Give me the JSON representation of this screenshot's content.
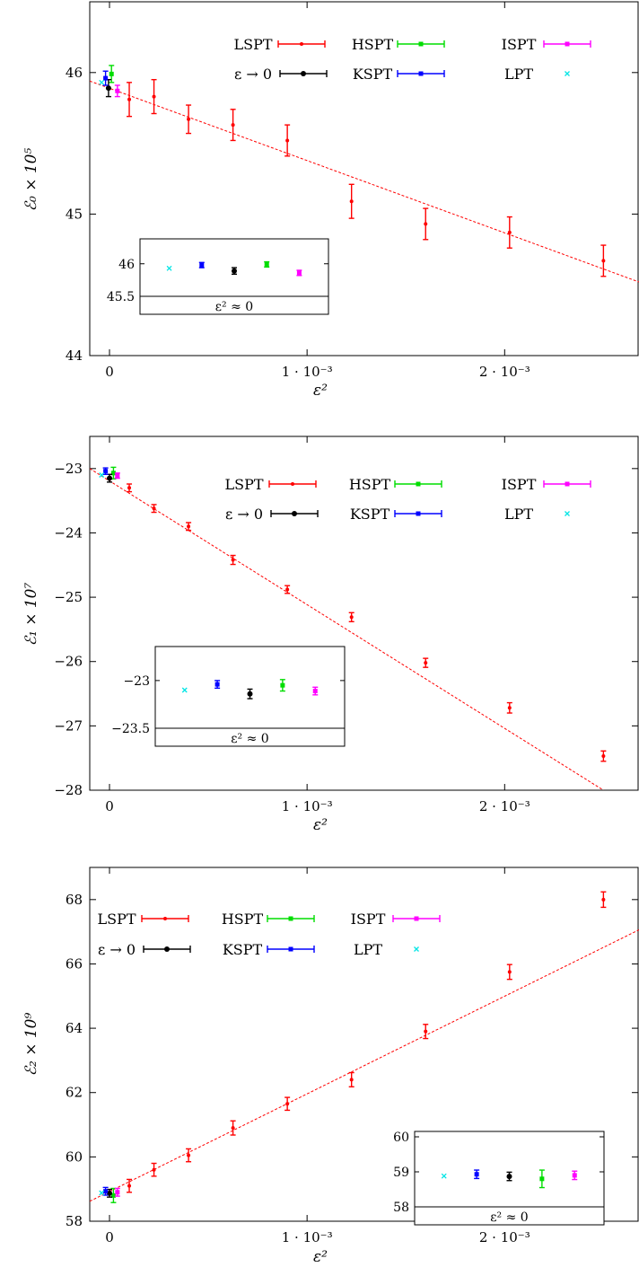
{
  "chart_data": [
    {
      "type": "scatter",
      "ylabel": "ℰ₀ × 10⁵",
      "xlabel": "ε²",
      "xlim": [
        -0.0001,
        0.00268
      ],
      "ylim": [
        44,
        46.5
      ],
      "xticks": [
        {
          "v": 0,
          "label": "0"
        },
        {
          "v": 0.001,
          "label": "1 · 10⁻³"
        },
        {
          "v": 0.002,
          "label": "2 · 10⁻³"
        }
      ],
      "yticks": [
        {
          "v": 44,
          "label": "44"
        },
        {
          "v": 45,
          "label": "45"
        },
        {
          "v": 46,
          "label": "46"
        }
      ],
      "legend": [
        "LSPT",
        "HSPT",
        "ISPT",
        "ε → 0",
        "KSPT",
        "LPT"
      ],
      "legend_position": "top-right",
      "series": [
        {
          "name": "LSPT",
          "color": "#ff0000",
          "x": [
            0.0001,
            0.000225,
            0.0004,
            0.000625,
            0.0009,
            0.001225,
            0.0016,
            0.002025,
            0.0025
          ],
          "y": [
            45.81,
            45.83,
            45.67,
            45.63,
            45.52,
            45.09,
            44.93,
            44.87,
            44.67
          ],
          "err": [
            0.12,
            0.12,
            0.1,
            0.11,
            0.11,
            0.12,
            0.11,
            0.11,
            0.11
          ]
        },
        {
          "name": "HSPT",
          "color": "#00dd00",
          "x": [
            1e-05
          ],
          "y": [
            45.99
          ],
          "err": [
            0.06
          ]
        },
        {
          "name": "ISPT",
          "color": "#ff00ff",
          "x": [
            4e-05
          ],
          "y": [
            45.87
          ],
          "err": [
            0.04
          ]
        },
        {
          "name": "ε → 0",
          "color": "#000000",
          "x": [
            -5e-06
          ],
          "y": [
            45.89
          ],
          "err": [
            0.06
          ]
        },
        {
          "name": "KSPT",
          "color": "#0000ff",
          "x": [
            -2e-05
          ],
          "y": [
            45.96
          ],
          "err": [
            0.05
          ]
        },
        {
          "name": "LPT",
          "color": "#00e5e5",
          "x": [
            -4e-05
          ],
          "y": [
            45.93
          ],
          "err": [
            0
          ]
        }
      ],
      "fit": {
        "color": "#ff0000",
        "x": [
          -0.0001,
          0.00268
        ],
        "y": [
          45.94,
          44.52
        ]
      },
      "inset": {
        "xlabel": "ε² ≈ 0",
        "ylim": [
          45.5,
          46.3
        ],
        "yticks": [
          {
            "v": 46,
            "label": "46"
          },
          {
            "v": 45.5,
            "label": "45.5"
          }
        ],
        "points": [
          {
            "name": "LPT",
            "color": "#00e5e5",
            "y": 45.93,
            "err": 0
          },
          {
            "name": "KSPT",
            "color": "#0000ff",
            "y": 45.98,
            "err": 0.04
          },
          {
            "name": "ε → 0",
            "color": "#000000",
            "y": 45.89,
            "err": 0.05
          },
          {
            "name": "HSPT",
            "color": "#00dd00",
            "y": 45.99,
            "err": 0.04
          },
          {
            "name": "ISPT",
            "color": "#ff00ff",
            "y": 45.86,
            "err": 0.04
          }
        ]
      }
    },
    {
      "type": "scatter",
      "ylabel": "ℰ₁ × 10⁷",
      "xlabel": "ε²",
      "xlim": [
        -0.0001,
        0.00268
      ],
      "ylim": [
        -28,
        -22.5
      ],
      "xticks": [
        {
          "v": 0,
          "label": "0"
        },
        {
          "v": 0.001,
          "label": "1 · 10⁻³"
        },
        {
          "v": 0.002,
          "label": "2 · 10⁻³"
        }
      ],
      "yticks": [
        {
          "v": -23,
          "label": "−23"
        },
        {
          "v": -24,
          "label": "−24"
        },
        {
          "v": -25,
          "label": "−25"
        },
        {
          "v": -26,
          "label": "−26"
        },
        {
          "v": -27,
          "label": "−27"
        },
        {
          "v": -28,
          "label": "−28"
        }
      ],
      "legend": [
        "LSPT",
        "HSPT",
        "ISPT",
        "ε → 0",
        "KSPT",
        "LPT"
      ],
      "legend_position": "top-right",
      "series": [
        {
          "name": "LSPT",
          "color": "#ff0000",
          "x": [
            0.0001,
            0.000225,
            0.0004,
            0.000625,
            0.0009,
            0.001225,
            0.0016,
            0.002025,
            0.0025
          ],
          "y": [
            -23.3,
            -23.62,
            -23.9,
            -24.42,
            -24.88,
            -25.31,
            -26.02,
            -26.72,
            -27.47
          ],
          "err": [
            0.06,
            0.06,
            0.06,
            0.07,
            0.06,
            0.07,
            0.07,
            0.08,
            0.08
          ]
        },
        {
          "name": "HSPT",
          "color": "#00dd00",
          "x": [
            2e-05
          ],
          "y": [
            -23.07
          ],
          "err": [
            0.09
          ]
        },
        {
          "name": "ISPT",
          "color": "#ff00ff",
          "x": [
            4e-05
          ],
          "y": [
            -23.11
          ],
          "err": [
            0.04
          ]
        },
        {
          "name": "ε → 0",
          "color": "#000000",
          "x": [
            0
          ],
          "y": [
            -23.15
          ],
          "err": [
            0.06
          ]
        },
        {
          "name": "KSPT",
          "color": "#0000ff",
          "x": [
            -2e-05
          ],
          "y": [
            -23.04
          ],
          "err": [
            0.05
          ]
        },
        {
          "name": "LPT",
          "color": "#00e5e5",
          "x": [
            -4e-05
          ],
          "y": [
            -23.1
          ],
          "err": [
            0
          ]
        }
      ],
      "fit": {
        "color": "#ff0000",
        "x": [
          -0.0001,
          0.0025
        ],
        "y": [
          -23.0,
          -28.0
        ]
      },
      "inset": {
        "xlabel": "ε² ≈ 0",
        "ylim": [
          -23.5,
          -22.7
        ],
        "yticks": [
          {
            "v": -23,
            "label": "−23"
          },
          {
            "v": -23.5,
            "label": "−23.5"
          }
        ],
        "points": [
          {
            "name": "LPT",
            "color": "#00e5e5",
            "y": -23.1,
            "err": 0
          },
          {
            "name": "KSPT",
            "color": "#0000ff",
            "y": -23.04,
            "err": 0.04
          },
          {
            "name": "ε → 0",
            "color": "#000000",
            "y": -23.14,
            "err": 0.05
          },
          {
            "name": "HSPT",
            "color": "#00dd00",
            "y": -23.05,
            "err": 0.06
          },
          {
            "name": "ISPT",
            "color": "#ff00ff",
            "y": -23.11,
            "err": 0.04
          }
        ]
      }
    },
    {
      "type": "scatter",
      "ylabel": "ℰ₂ × 10⁹",
      "xlabel": "ε²",
      "xlim": [
        -0.0001,
        0.00268
      ],
      "ylim": [
        58,
        69
      ],
      "xticks": [
        {
          "v": 0,
          "label": "0"
        },
        {
          "v": 0.001,
          "label": "1 · 10⁻³"
        },
        {
          "v": 0.002,
          "label": "2 · 10⁻³"
        }
      ],
      "yticks": [
        {
          "v": 58,
          "label": "58"
        },
        {
          "v": 60,
          "label": "60"
        },
        {
          "v": 62,
          "label": "62"
        },
        {
          "v": 64,
          "label": "64"
        },
        {
          "v": 66,
          "label": "66"
        },
        {
          "v": 68,
          "label": "68"
        }
      ],
      "legend": [
        "LSPT",
        "HSPT",
        "ISPT",
        "ε → 0",
        "KSPT",
        "LPT"
      ],
      "legend_position": "top-left",
      "series": [
        {
          "name": "LSPT",
          "color": "#ff0000",
          "x": [
            0.0001,
            0.000225,
            0.0004,
            0.000625,
            0.0009,
            0.001225,
            0.0016,
            0.002025,
            0.0025
          ],
          "y": [
            59.1,
            59.6,
            60.05,
            60.9,
            61.65,
            62.4,
            63.9,
            65.75,
            68.0
          ],
          "err": [
            0.2,
            0.2,
            0.2,
            0.22,
            0.2,
            0.22,
            0.22,
            0.23,
            0.24
          ]
        },
        {
          "name": "HSPT",
          "color": "#00dd00",
          "x": [
            2e-05
          ],
          "y": [
            58.8
          ],
          "err": [
            0.22
          ]
        },
        {
          "name": "ISPT",
          "color": "#ff00ff",
          "x": [
            4e-05
          ],
          "y": [
            58.9
          ],
          "err": [
            0.12
          ]
        },
        {
          "name": "ε → 0",
          "color": "#000000",
          "x": [
            0
          ],
          "y": [
            58.87
          ],
          "err": [
            0.12
          ]
        },
        {
          "name": "KSPT",
          "color": "#0000ff",
          "x": [
            -2e-05
          ],
          "y": [
            58.93
          ],
          "err": [
            0.12
          ]
        },
        {
          "name": "LPT",
          "color": "#00e5e5",
          "x": [
            -4e-05
          ],
          "y": [
            58.88
          ],
          "err": [
            0
          ]
        }
      ],
      "fit": {
        "color": "#ff0000",
        "x": [
          -0.0001,
          0.00268
        ],
        "y": [
          58.62,
          67.06
        ]
      },
      "inset": {
        "xlabel": "ε² ≈ 0",
        "ylim": [
          58,
          60
        ],
        "yticks": [
          {
            "v": 60,
            "label": "60"
          },
          {
            "v": 59,
            "label": "59"
          },
          {
            "v": 58,
            "label": "58"
          }
        ],
        "points": [
          {
            "name": "LPT",
            "color": "#00e5e5",
            "y": 58.88,
            "err": 0
          },
          {
            "name": "KSPT",
            "color": "#0000ff",
            "y": 58.93,
            "err": 0.12
          },
          {
            "name": "ε → 0",
            "color": "#000000",
            "y": 58.87,
            "err": 0.12
          },
          {
            "name": "HSPT",
            "color": "#00dd00",
            "y": 58.8,
            "err": 0.25
          },
          {
            "name": "ISPT",
            "color": "#ff00ff",
            "y": 58.9,
            "err": 0.12
          }
        ]
      }
    }
  ]
}
